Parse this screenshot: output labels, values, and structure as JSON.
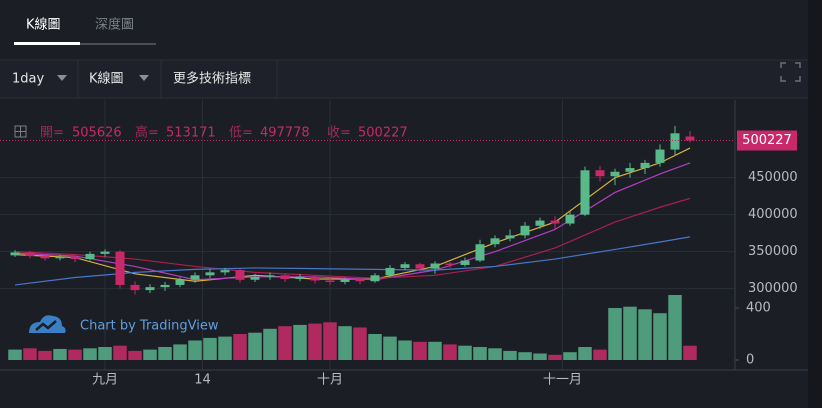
{
  "tabs": [
    "K線圖",
    "深度圖"
  ],
  "toolbar": {
    "interval": "1day",
    "chart_style": "K線圖",
    "indicators": "更多技術指標"
  },
  "legend": {
    "open_label": "開=",
    "high_label": "高=",
    "low_label": "低=",
    "close_label": "收="
  },
  "watermark": "Chart by TradingView",
  "chart_data": {
    "type": "candlestick",
    "x": [
      -12,
      -10,
      -8,
      -6,
      -4,
      -2,
      0,
      2,
      4,
      6,
      8,
      10,
      12,
      14,
      16,
      18,
      20,
      22,
      24,
      26,
      28,
      30,
      32,
      34,
      36,
      38,
      40,
      42,
      44,
      46,
      48,
      50,
      52,
      54,
      56,
      58,
      60,
      62,
      64,
      66,
      68,
      70,
      72,
      74,
      76,
      78
    ],
    "open": [
      345000,
      349000,
      344000,
      341000,
      343000,
      340000,
      347000,
      350000,
      305000,
      298000,
      302000,
      305000,
      312000,
      318000,
      322000,
      325000,
      312000,
      316000,
      318000,
      313000,
      316000,
      311000,
      309000,
      312000,
      310000,
      318000,
      328000,
      333000,
      327000,
      334000,
      332000,
      338000,
      360000,
      368000,
      372000,
      385000,
      392000,
      388000,
      400000,
      460000,
      452000,
      458000,
      463000,
      470000,
      488000,
      505626
    ],
    "high": [
      352000,
      351000,
      346000,
      346000,
      345000,
      350000,
      353000,
      352000,
      310000,
      306000,
      309000,
      315000,
      322000,
      326000,
      328000,
      327000,
      320000,
      322000,
      320000,
      320000,
      318000,
      314000,
      315000,
      314000,
      321000,
      332000,
      336000,
      335000,
      337000,
      336000,
      342000,
      366000,
      372000,
      380000,
      390000,
      396000,
      398000,
      405000,
      465000,
      466000,
      462000,
      470000,
      474000,
      495000,
      520000,
      513171
    ],
    "low": [
      343000,
      341000,
      338000,
      338000,
      336000,
      338000,
      343000,
      300000,
      292000,
      294000,
      297000,
      302000,
      308000,
      314000,
      318000,
      308000,
      309000,
      312000,
      309000,
      310000,
      307000,
      305000,
      306000,
      306000,
      308000,
      315000,
      325000,
      322000,
      320000,
      328000,
      330000,
      336000,
      356000,
      364000,
      368000,
      381000,
      380000,
      385000,
      398000,
      445000,
      440000,
      450000,
      455000,
      465000,
      480000,
      497778
    ],
    "close": [
      349000,
      344000,
      341000,
      343000,
      340000,
      347000,
      350000,
      305000,
      298000,
      302000,
      305000,
      312000,
      318000,
      322000,
      325000,
      312000,
      316000,
      318000,
      313000,
      316000,
      311000,
      309000,
      312000,
      310000,
      318000,
      328000,
      333000,
      327000,
      334000,
      332000,
      338000,
      360000,
      368000,
      372000,
      385000,
      392000,
      388000,
      400000,
      460000,
      452000,
      458000,
      463000,
      470000,
      488000,
      510000,
      500227
    ],
    "volume": [
      80,
      90,
      70,
      85,
      80,
      90,
      100,
      110,
      70,
      80,
      100,
      120,
      150,
      170,
      180,
      200,
      210,
      240,
      260,
      270,
      280,
      290,
      260,
      250,
      200,
      180,
      150,
      140,
      140,
      120,
      110,
      100,
      90,
      70,
      60,
      50,
      40,
      60,
      100,
      80,
      400,
      410,
      390,
      360,
      500,
      110
    ],
    "up_color": "#5ab98a",
    "down_color": "#c8296a",
    "volume_up_color": "#4f9c7c",
    "volume_down_color": "#b02a60",
    "lines": [
      {
        "color": "#d9b23a",
        "x": [
          -12,
          -4,
          4,
          12,
          20,
          28,
          36,
          44,
          52,
          60,
          68,
          74,
          78
        ],
        "values": [
          346000,
          342000,
          320000,
          310000,
          318000,
          313000,
          313000,
          330000,
          362000,
          390000,
          450000,
          470000,
          490000
        ]
      },
      {
        "color": "#b43fc0",
        "x": [
          -12,
          -4,
          4,
          12,
          20,
          28,
          36,
          44,
          52,
          60,
          68,
          74,
          78
        ],
        "values": [
          348000,
          344000,
          330000,
          312000,
          316000,
          316000,
          312000,
          325000,
          350000,
          380000,
          430000,
          455000,
          470000
        ]
      },
      {
        "color": "#a8204c",
        "x": [
          -12,
          -4,
          4,
          12,
          20,
          28,
          36,
          44,
          52,
          60,
          68,
          74,
          78
        ],
        "values": [
          350000,
          346000,
          340000,
          330000,
          322000,
          318000,
          314000,
          318000,
          330000,
          355000,
          390000,
          410000,
          422000
        ]
      },
      {
        "color": "#4677c8",
        "x": [
          -12,
          -4,
          4,
          12,
          20,
          28,
          36,
          44,
          52,
          60,
          68,
          74,
          78
        ],
        "values": [
          305000,
          315000,
          322000,
          326000,
          328000,
          327000,
          326000,
          325000,
          330000,
          340000,
          353000,
          363000,
          370000
        ]
      }
    ],
    "xlim": [
      -14,
      84
    ],
    "xticks": [
      {
        "value": 0,
        "label": "九月"
      },
      {
        "value": 13,
        "label": "14"
      },
      {
        "value": 30,
        "label": "十月"
      },
      {
        "value": 61,
        "label": "十一月"
      }
    ],
    "ylim": [
      190000,
      555000
    ],
    "yticks": [
      300000,
      350000,
      400000,
      450000
    ],
    "volume_ylim": [
      0,
      2000
    ],
    "volume_yticks": [
      0,
      400
    ]
  }
}
